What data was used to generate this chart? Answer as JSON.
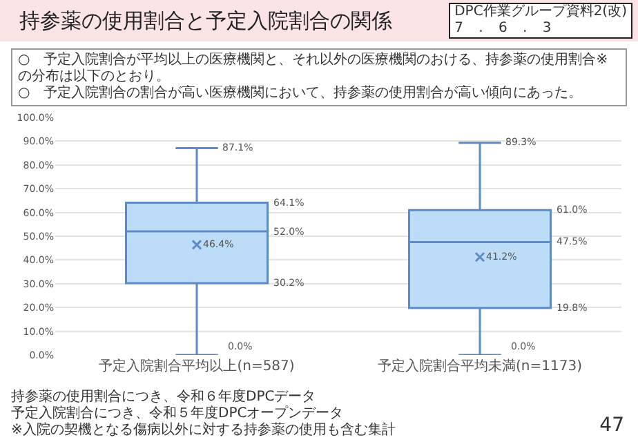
{
  "chart_data": {
    "type": "box",
    "title": "持参薬の使用割合と予定入院割合の関係",
    "subtitle": "○　予定入院割合が平均以上の医療機関と、それ以外の医療機関のおける、持参薬の使用割合※の分布は以下のとおり。\n○　予定入院割合の割合が高い医療機関において、持参薬の使用割合が高い傾向にあった。",
    "categories": [
      "予定入院割合平均以上(n=587)",
      "予定入院割合平均未満(n=1173)"
    ],
    "boxes": [
      {
        "low": 0,
        "q1": 30.2,
        "median": 52.0,
        "q3": 64.1,
        "high": 87.1,
        "mean": 46.4
      },
      {
        "low": 0,
        "q1": 19.8,
        "median": 47.5,
        "q3": 61.0,
        "high": 89.3,
        "mean": 41.2
      }
    ],
    "color": "#bddcf8",
    "marker": "cross",
    "grid": "y",
    "ylim": [
      0,
      100
    ],
    "yticks": [
      {
        "value": 0,
        "label": "0.0%"
      },
      {
        "value": 10,
        "label": "10.0%"
      },
      {
        "value": 20,
        "label": "20.0%"
      },
      {
        "value": 30,
        "label": "30.0%"
      },
      {
        "value": 40,
        "label": "40.0%"
      },
      {
        "value": 50,
        "label": "50.0%"
      },
      {
        "value": 60,
        "label": "60.0%"
      },
      {
        "value": 70,
        "label": "70.0%"
      },
      {
        "value": 80,
        "label": "80.0%"
      },
      {
        "value": 90,
        "label": "90.0%"
      },
      {
        "value": 100,
        "label": "100.0%"
      }
    ],
    "annotations": [
      "DPC作業グループ資料2(改)",
      "7 . 6 . 3",
      "持参薬の使用割合につき、令和６年度DPCデータ",
      "予定入院割合につき、令和５年度DPCオープンデータ",
      "※入院の契機となる傷病以外に対する持参薬の使用も含む集計",
      "47",
      "87.1%",
      "64.1%",
      "52.0%",
      "46.4%",
      "30.2%",
      "0.0%",
      "89.3%",
      "61.0%",
      "47.5%",
      "41.2%",
      "19.8%",
      "0.0%"
    ]
  }
}
